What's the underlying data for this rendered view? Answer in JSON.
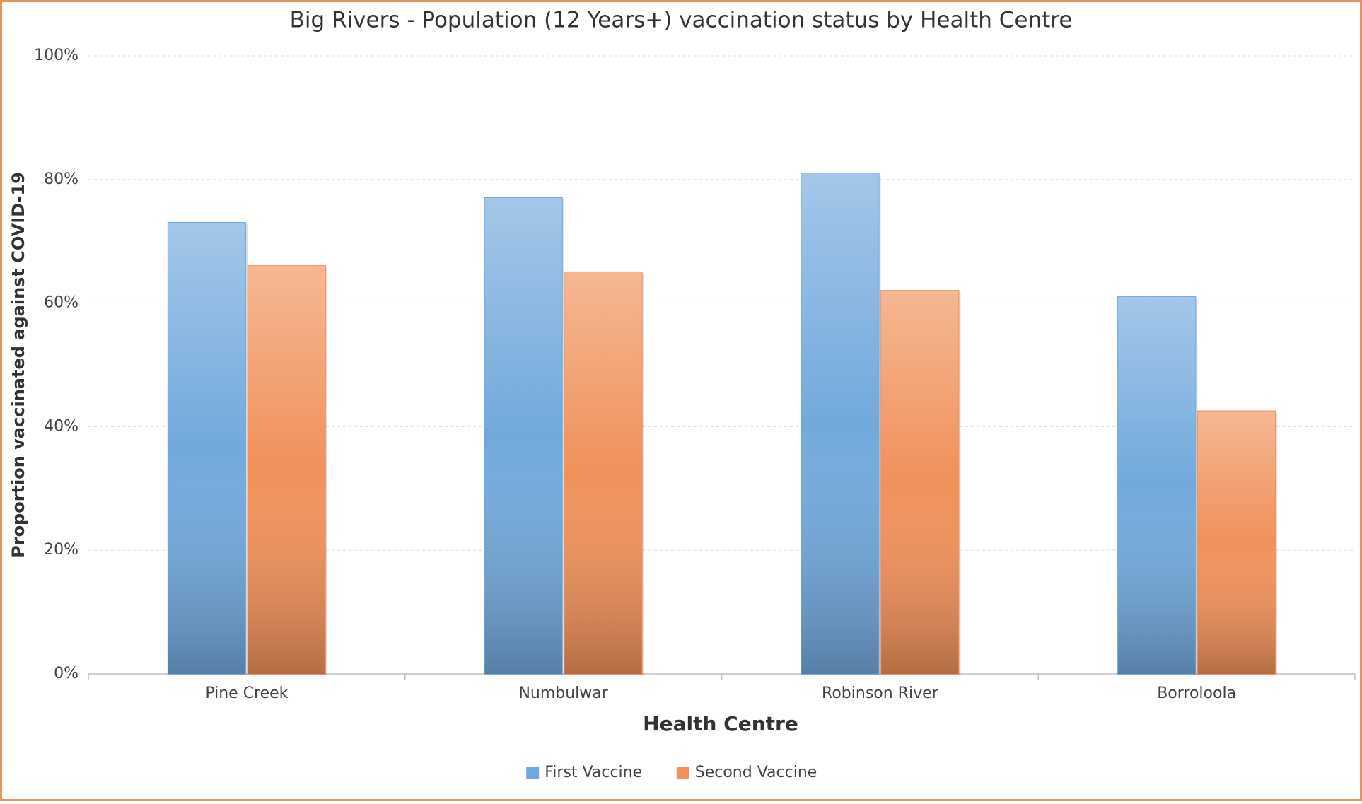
{
  "chart_data": {
    "type": "bar",
    "title": "Big Rivers - Population (12 Years+) vaccination status by Health Centre",
    "x_label": "Health Centre",
    "y_label": "Proportion vaccinated against COVID-19",
    "categories": [
      "Pine Creek",
      "Numbulwar",
      "Robinson River",
      "Borroloola"
    ],
    "series": [
      {
        "name": "First Vaccine",
        "color": "#72a9dc",
        "values": [
          73,
          77,
          81,
          61
        ]
      },
      {
        "name": "Second Vaccine",
        "color": "#f0915a",
        "values": [
          66,
          65,
          62,
          42.5
        ]
      }
    ],
    "ylim": [
      0,
      100
    ],
    "yticks": [
      {
        "value": 0,
        "label": "0%"
      },
      {
        "value": 20,
        "label": "20%"
      },
      {
        "value": 40,
        "label": "40%"
      },
      {
        "value": 60,
        "label": "60%"
      },
      {
        "value": 80,
        "label": "80%"
      },
      {
        "value": 100,
        "label": "100%"
      }
    ],
    "grid": true,
    "legend": "bottom"
  }
}
